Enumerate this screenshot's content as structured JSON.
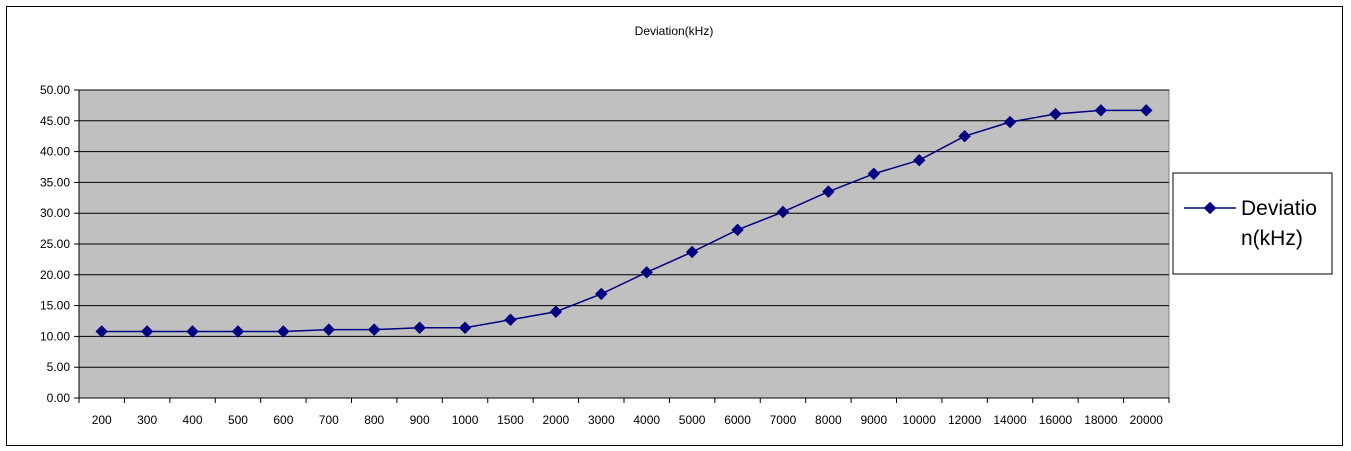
{
  "chart_data": {
    "type": "line",
    "title": "Deviation(kHz)",
    "xlabel": "",
    "ylabel": "",
    "categories": [
      "200",
      "300",
      "400",
      "500",
      "600",
      "700",
      "800",
      "900",
      "1000",
      "1500",
      "2000",
      "3000",
      "4000",
      "5000",
      "6000",
      "7000",
      "8000",
      "9000",
      "10000",
      "12000",
      "14000",
      "16000",
      "18000",
      "20000"
    ],
    "y_tick_labels": [
      "0.00",
      "5.00",
      "10.00",
      "15.00",
      "20.00",
      "25.00",
      "30.00",
      "35.00",
      "40.00",
      "45.00",
      "50.00"
    ],
    "ylim": [
      0,
      50
    ],
    "grid": true,
    "legend_position": "right",
    "series": [
      {
        "name": "Deviation(kHz)",
        "legend_lines": [
          "Deviatio",
          "n(kHz)"
        ],
        "color": "#000080",
        "marker": "diamond",
        "values": [
          10.8,
          10.8,
          10.8,
          10.8,
          10.8,
          11.1,
          11.1,
          11.4,
          11.4,
          12.7,
          14.0,
          16.9,
          20.4,
          23.7,
          27.3,
          30.2,
          33.5,
          36.4,
          38.6,
          42.5,
          44.8,
          46.1,
          46.7,
          46.7
        ]
      }
    ],
    "colors": {
      "plot_background": "#c0c0c0",
      "gridline": "#000000",
      "series": "#000080"
    }
  }
}
